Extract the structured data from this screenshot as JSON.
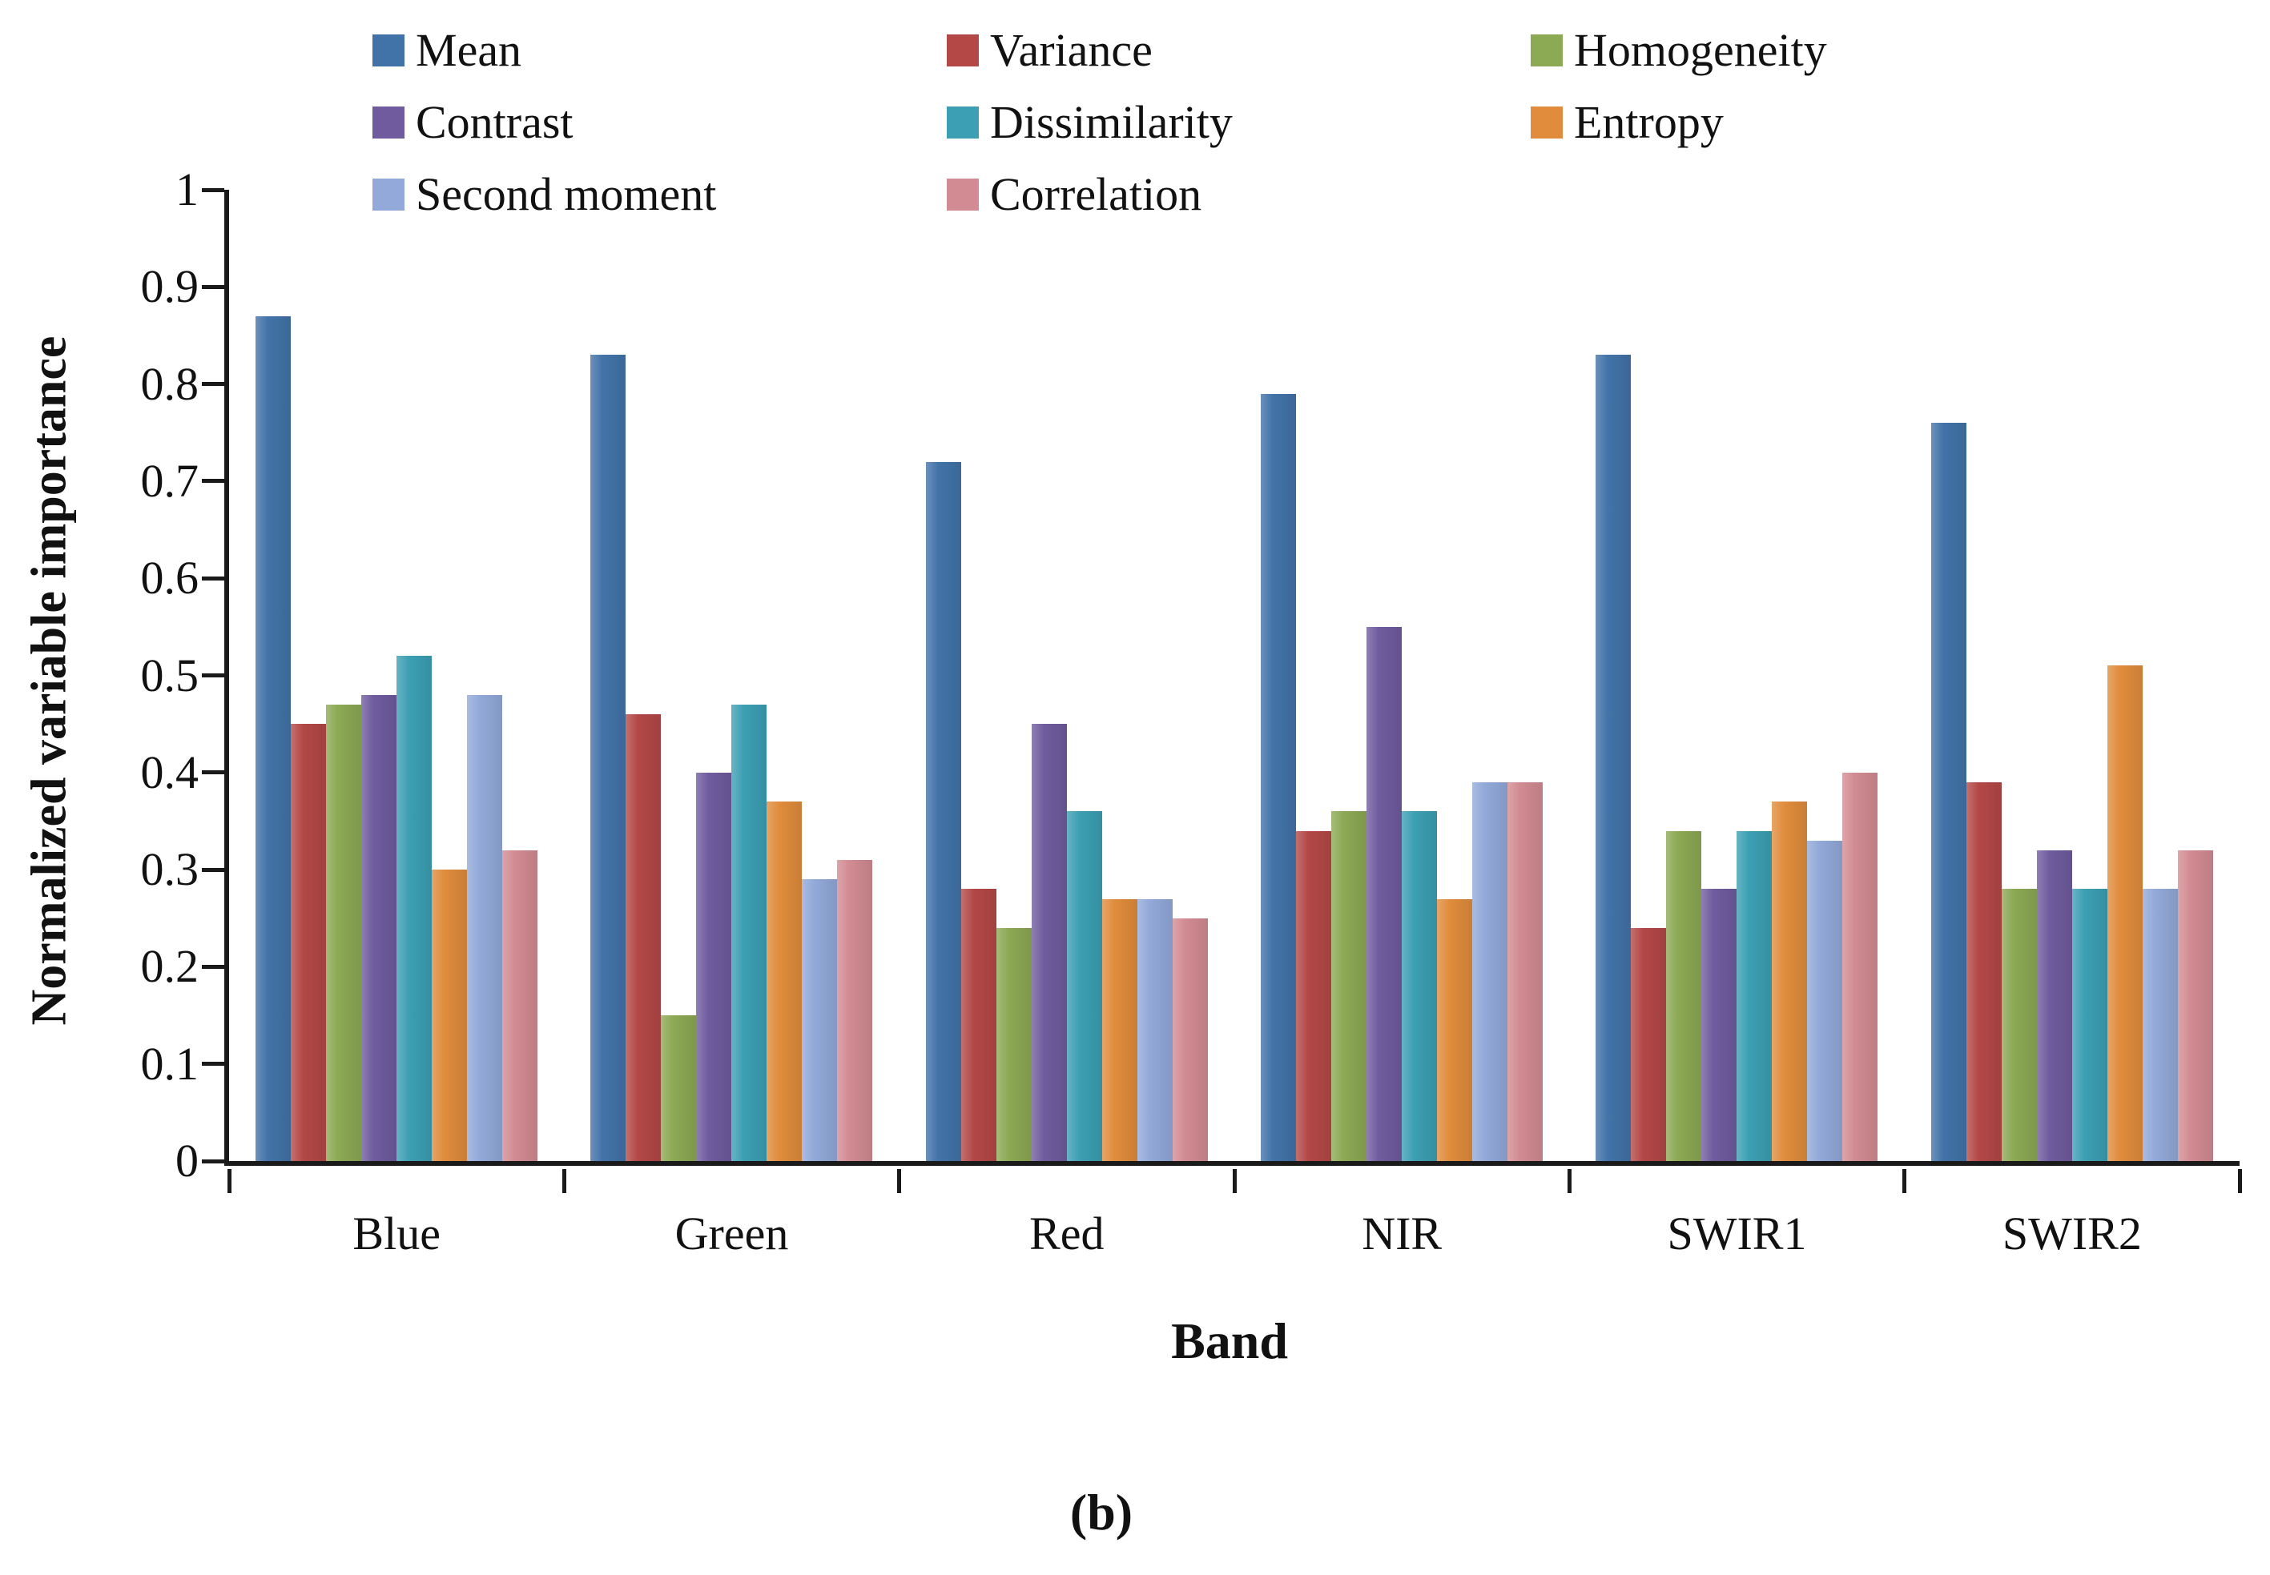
{
  "figure": {
    "caption": "(b)",
    "background": "#ffffff",
    "text_color": "#111111",
    "axis_color": "#1a1a1a"
  },
  "chart_data": {
    "type": "bar",
    "title": "",
    "xlabel": "Band",
    "ylabel": "Normalized variable importance",
    "ylim": [
      0,
      1
    ],
    "ytick_labels": [
      "0",
      "0.1",
      "0.2",
      "0.3",
      "0.4",
      "0.5",
      "0.6",
      "0.7",
      "0.8",
      "0.9",
      "1"
    ],
    "categories": [
      "Blue",
      "Green",
      "Red",
      "NIR",
      "SWIR1",
      "SWIR2"
    ],
    "grid": false,
    "legend_position": "top",
    "series": [
      {
        "name": "Mean",
        "color": "#4273A8",
        "values": [
          0.87,
          0.83,
          0.72,
          0.79,
          0.83,
          0.76
        ]
      },
      {
        "name": "Variance",
        "color": "#B34846",
        "values": [
          0.45,
          0.46,
          0.28,
          0.34,
          0.24,
          0.39
        ]
      },
      {
        "name": "Homogeneity",
        "color": "#8CA954",
        "values": [
          0.47,
          0.15,
          0.24,
          0.36,
          0.34,
          0.28
        ]
      },
      {
        "name": "Contrast",
        "color": "#6F5B9E",
        "values": [
          0.48,
          0.4,
          0.45,
          0.55,
          0.28,
          0.32
        ]
      },
      {
        "name": "Dissimilarity",
        "color": "#3C9FB4",
        "values": [
          0.52,
          0.47,
          0.36,
          0.36,
          0.34,
          0.28
        ]
      },
      {
        "name": "Entropy",
        "color": "#E08C3C",
        "values": [
          0.3,
          0.37,
          0.27,
          0.27,
          0.37,
          0.51
        ]
      },
      {
        "name": "Second moment",
        "color": "#92A9D9",
        "values": [
          0.48,
          0.29,
          0.27,
          0.39,
          0.33,
          0.28
        ]
      },
      {
        "name": "Correlation",
        "color": "#D28B92",
        "values": [
          0.32,
          0.31,
          0.25,
          0.39,
          0.4,
          0.32
        ]
      }
    ]
  }
}
